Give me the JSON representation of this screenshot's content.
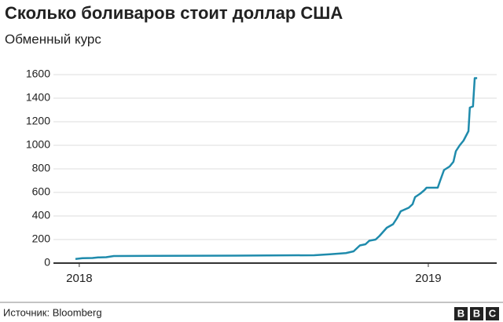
{
  "chart_data": {
    "type": "line",
    "title": "Сколько боливаров стоит доллар США",
    "subtitle": "Обменный курс",
    "x": [
      2017.989,
      2018.009,
      2018.038,
      2018.054,
      2018.077,
      2018.099,
      2018.223,
      2018.448,
      2018.673,
      2018.718,
      2018.764,
      2018.786,
      2018.804,
      2018.82,
      2018.831,
      2018.849,
      2018.86,
      2018.869,
      2018.881,
      2018.899,
      2018.91,
      2018.921,
      2018.944,
      2018.955,
      2018.962,
      2018.977,
      2018.989,
      2018.995,
      2019.027,
      2019.034,
      2019.045,
      2019.061,
      2019.072,
      2019.079,
      2019.09,
      2019.101,
      2019.115,
      2019.119,
      2019.128,
      2019.133,
      2019.14
    ],
    "series": [
      {
        "color": "#1f8bac",
        "values": [
          35,
          42,
          43,
          48,
          50,
          60,
          62,
          63,
          67,
          75,
          85,
          100,
          150,
          160,
          190,
          200,
          230,
          260,
          300,
          330,
          380,
          440,
          470,
          500,
          560,
          590,
          620,
          640,
          640,
          700,
          790,
          820,
          860,
          950,
          1000,
          1040,
          1120,
          1320,
          1330,
          1570,
          1570
        ]
      }
    ],
    "xlim": [
      2017.926,
      2019.196
    ],
    "xticks": [
      2018,
      2019
    ],
    "ylim": [
      0,
      1600
    ],
    "yticks": [
      0,
      200,
      400,
      600,
      800,
      1000,
      1200,
      1400,
      1600
    ],
    "grid": true,
    "source": "Источник: Bloomberg",
    "logo": [
      "B",
      "B",
      "C"
    ]
  }
}
